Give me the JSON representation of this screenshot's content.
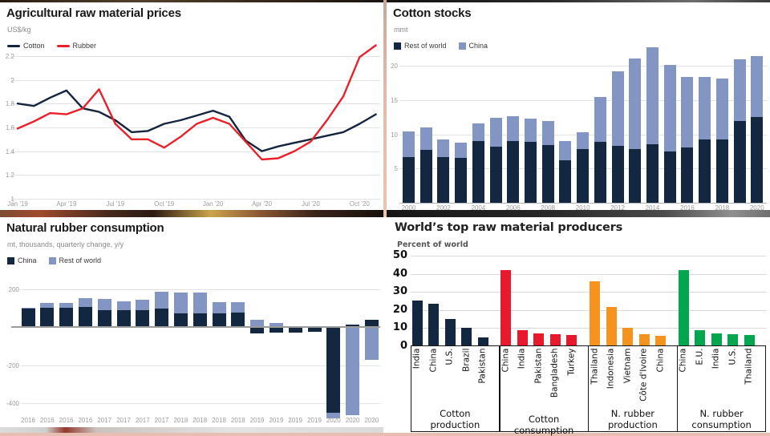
{
  "chart_data": [
    {
      "id": "agricultural-raw-material-prices",
      "type": "line",
      "title": "Agricultural raw material prices",
      "unit": "US$/kg",
      "grid": true,
      "legend_position": "top-left",
      "x": [
        "Jan '19",
        "Feb '19",
        "Mar '19",
        "Apr '19",
        "May '19",
        "Jun '19",
        "Jul '19",
        "Aug '19",
        "Sep '19",
        "Oct '19",
        "Nov '19",
        "Dec '19",
        "Jan '20",
        "Feb '20",
        "Mar '20",
        "Apr '20",
        "May '20",
        "Jun '20",
        "Jul '20",
        "Aug '20",
        "Sep '20",
        "Oct '20",
        "Nov '20"
      ],
      "x_tick_indices": [
        0,
        3,
        6,
        9,
        12,
        15,
        18,
        21
      ],
      "ylim": [
        1,
        2.3
      ],
      "yticks": [
        2.2,
        2,
        1.8,
        1.6,
        1.4,
        1.2,
        1
      ],
      "series": [
        {
          "name": "Cotton",
          "color": "#15253d",
          "values": [
            1.8,
            1.78,
            1.85,
            1.91,
            1.76,
            1.73,
            1.66,
            1.56,
            1.57,
            1.63,
            1.66,
            1.7,
            1.74,
            1.69,
            1.49,
            1.4,
            1.44,
            1.47,
            1.5,
            1.53,
            1.56,
            1.63,
            1.71
          ]
        },
        {
          "name": "Rubber",
          "color": "#e8212b",
          "values": [
            1.59,
            1.65,
            1.72,
            1.71,
            1.76,
            1.92,
            1.63,
            1.5,
            1.5,
            1.43,
            1.52,
            1.63,
            1.68,
            1.63,
            1.48,
            1.33,
            1.34,
            1.4,
            1.48,
            1.66,
            1.86,
            2.19,
            2.29
          ]
        }
      ]
    },
    {
      "id": "cotton-stocks",
      "type": "stacked-bar",
      "title": "Cotton stocks",
      "unit": "mmt",
      "categories": [
        "2000",
        "2001",
        "2002",
        "2003",
        "2004",
        "2005",
        "2006",
        "2007",
        "2008",
        "2009",
        "2010",
        "2011",
        "2012",
        "2013",
        "2014",
        "2015",
        "2016",
        "2017",
        "2018",
        "2019",
        "2020"
      ],
      "x_label_every": 2,
      "ylim": [
        0,
        23.5
      ],
      "yticks": [
        20,
        15,
        10,
        5
      ],
      "series": [
        {
          "name": "Rest of world",
          "color": "#132741",
          "values": [
            6.7,
            7.7,
            6.7,
            6.5,
            9.0,
            8.2,
            9.0,
            8.9,
            8.4,
            6.2,
            7.9,
            8.9,
            8.3,
            7.8,
            8.5,
            7.5,
            8.1,
            9.3,
            9.3,
            11.9,
            12.5
          ]
        },
        {
          "name": "China",
          "color": "#8396c3",
          "values": [
            3.7,
            3.3,
            2.6,
            2.3,
            2.6,
            4.2,
            3.7,
            3.4,
            3.6,
            2.8,
            2.4,
            6.6,
            10.9,
            13.3,
            14.2,
            12.6,
            10.3,
            9.1,
            8.9,
            9.1,
            8.9
          ]
        }
      ]
    },
    {
      "id": "natural-rubber-consumption",
      "type": "diverging-stacked-bar",
      "title": "Natural rubber consumption",
      "unit": "mt, thousands, quarterly change, y/y",
      "categories": [
        "2016",
        "2016",
        "2016",
        "2016",
        "2017",
        "2017",
        "2017",
        "2017",
        "2018",
        "2018",
        "2018",
        "2018",
        "2019",
        "2019",
        "2019",
        "2019",
        "2020",
        "2020",
        "2020"
      ],
      "ylim": [
        -500,
        230
      ],
      "yticks": [
        200,
        -200,
        -400
      ],
      "series": [
        {
          "name": "China",
          "color": "#132741",
          "values": [
            97,
            103,
            103,
            106,
            87,
            89,
            89,
            96,
            72,
            71,
            71,
            74,
            -32,
            -30,
            -30,
            -25,
            -450,
            12,
            40
          ]
        },
        {
          "name": "Rest of world",
          "color": "#8396c3",
          "values": [
            6,
            23,
            25,
            47,
            62,
            46,
            56,
            91,
            110,
            108,
            60,
            56,
            38,
            22,
            0,
            0,
            -28,
            -465,
            -172
          ]
        }
      ]
    },
    {
      "id": "worlds-top-raw-material-producers",
      "type": "grouped-bar",
      "title": "World’s top raw material producers",
      "unit": "Percent of world",
      "ylim": [
        0,
        52
      ],
      "yticks": [
        50,
        40,
        30,
        20,
        10,
        0
      ],
      "groups": [
        {
          "label_lines": [
            "Cotton",
            "production"
          ],
          "color": "#132741",
          "items": [
            {
              "label": "India",
              "value": 25.1
            },
            {
              "label": "China",
              "value": 23.6
            },
            {
              "label": "U.S.",
              "value": 15.0
            },
            {
              "label": "Brazil",
              "value": 10.1
            },
            {
              "label": "Pakistan",
              "value": 4.8
            }
          ]
        },
        {
          "label_lines": [
            "Cotton consumption"
          ],
          "color": "#e8192c",
          "items": [
            {
              "label": "China",
              "value": 42.2
            },
            {
              "label": "India",
              "value": 8.7
            },
            {
              "label": "Pakistan",
              "value": 7.2
            },
            {
              "label": "Bangladesh",
              "value": 6.5
            },
            {
              "label": "Turkey",
              "value": 6.3
            }
          ]
        },
        {
          "label_lines": [
            "N. rubber",
            "production"
          ],
          "color": "#f6921e",
          "items": [
            {
              "label": "Thailand",
              "value": 35.7
            },
            {
              "label": "Indonesia",
              "value": 21.8
            },
            {
              "label": "Vietnam",
              "value": 10.0
            },
            {
              "label": "Côte d'Ivoire",
              "value": 6.8
            },
            {
              "label": "China",
              "value": 5.6
            }
          ]
        },
        {
          "label_lines": [
            "N. rubber",
            "consumption"
          ],
          "color": "#02a64e",
          "items": [
            {
              "label": "China",
              "value": 42.2
            },
            {
              "label": "E.U.",
              "value": 8.7
            },
            {
              "label": "India",
              "value": 7.3
            },
            {
              "label": "U.S.",
              "value": 6.6
            },
            {
              "label": "Thailand",
              "value": 6.1
            }
          ]
        }
      ]
    }
  ]
}
